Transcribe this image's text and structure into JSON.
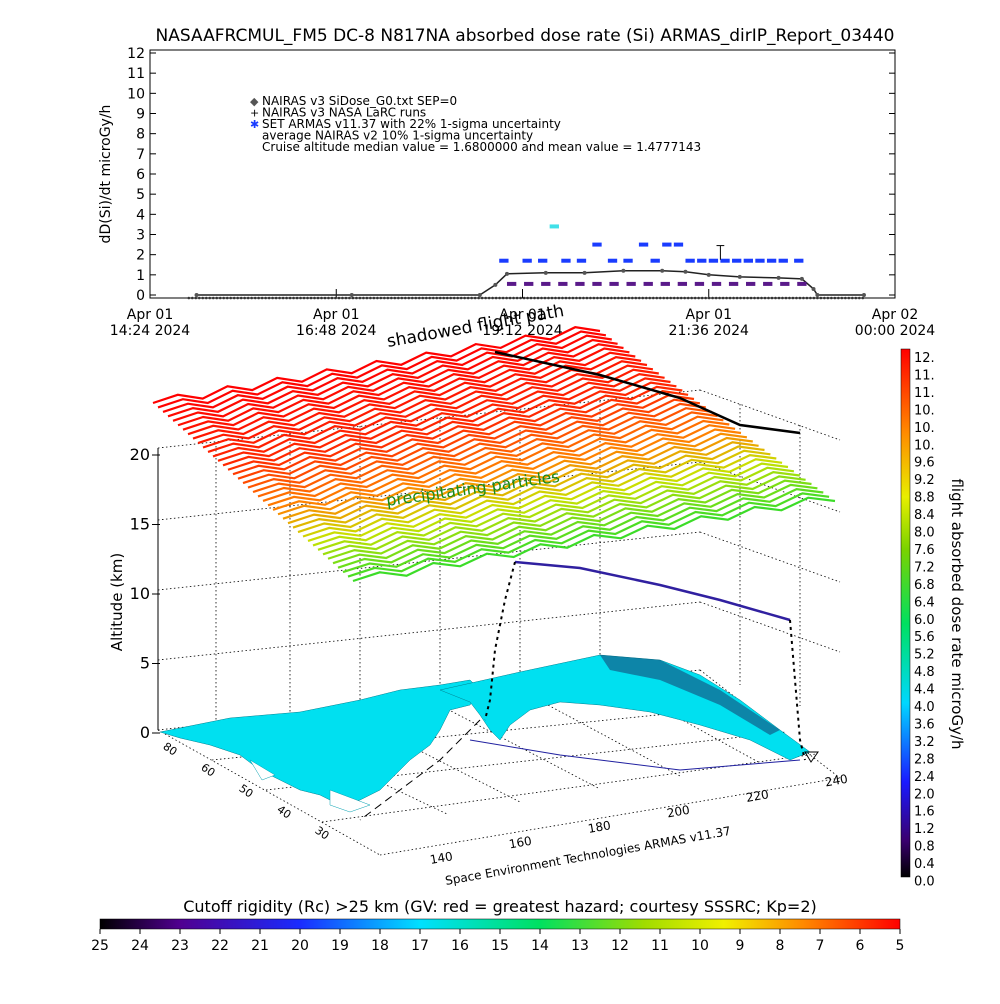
{
  "title": "NASAAFRCMUL_FM5 DC-8   N817NA absorbed dose rate (Si) ARMAS_dirIP_Report_03440",
  "chart_data": [
    {
      "type": "scatter",
      "ylabel": "dD(Si)/dt microGy/h",
      "ylim": [
        0,
        12
      ],
      "yticks": [
        "0",
        "1",
        "2",
        "3",
        "4",
        "5",
        "6",
        "7",
        "8",
        "9",
        "10",
        "11",
        "12"
      ],
      "xlim_hours": [
        14.4,
        24.0
      ],
      "xticks": [
        {
          "hour": 14.4,
          "l1": "Apr 01",
          "l2": "14:24 2024"
        },
        {
          "hour": 16.8,
          "l1": "Apr 01",
          "l2": "16:48 2024"
        },
        {
          "hour": 19.2,
          "l1": "Apr 01",
          "l2": "19:12 2024"
        },
        {
          "hour": 21.6,
          "l1": "Apr 01",
          "l2": "21:36 2024"
        },
        {
          "hour": 24.0,
          "l1": "Apr 02",
          "l2": "00:00 2024"
        }
      ],
      "legend": [
        {
          "symbol": "◆",
          "color": "#555555",
          "text": "NAIRAS v3 SiDose_G0.txt SEP=0"
        },
        {
          "symbol": "+",
          "color": "#000000",
          "text": "NAIRAS v3 NASA LaRC runs"
        },
        {
          "symbol": "✱",
          "color": "#1a3cff",
          "text": "SET ARMAS v11.37 with 22% 1-sigma uncertainty"
        },
        {
          "symbol": "",
          "color": "#000000",
          "text": "average NAIRAS v2 10% 1-sigma uncertainty"
        },
        {
          "symbol": "",
          "color": "#000000",
          "text": "Cruise altitude median value = 1.6800000 and mean value = 1.4777143"
        }
      ],
      "series": [
        {
          "name": "NAIRAS v3 SiDose_G0.txt SEP=0",
          "x_hours": [
            15.0,
            17.0,
            18.65,
            18.85,
            19.0,
            19.5,
            20.0,
            20.5,
            21.0,
            21.3,
            21.6,
            22.0,
            22.5,
            22.8,
            22.95,
            23.0,
            23.6
          ],
          "y": [
            0,
            0,
            0,
            0.5,
            1.05,
            1.1,
            1.1,
            1.2,
            1.2,
            1.15,
            1.0,
            0.9,
            0.85,
            0.8,
            0.3,
            0,
            0
          ]
        },
        {
          "name": "SET ARMAS v11.37 with 22% 1-sigma uncertainty",
          "x_hours": [
            18.9,
            19.2,
            19.4,
            19.55,
            19.7,
            19.9,
            20.1,
            20.3,
            20.5,
            20.7,
            20.85,
            21.0,
            21.15,
            21.3,
            21.45,
            21.6,
            21.75,
            21.9,
            22.05,
            22.2,
            22.35,
            22.5,
            22.7
          ],
          "y": [
            1.7,
            1.7,
            1.7,
            3.4,
            1.7,
            1.7,
            2.5,
            1.7,
            1.7,
            2.5,
            1.7,
            2.5,
            2.5,
            1.7,
            1.7,
            1.7,
            1.7,
            1.7,
            1.7,
            1.7,
            1.7,
            1.7,
            1.7
          ]
        }
      ]
    },
    {
      "type": "line",
      "zlabel": "Altitude (km)",
      "zticks": [
        "0",
        "5",
        "10",
        "15",
        "20"
      ],
      "lon_ticks": [
        "140",
        "160",
        "180",
        "200",
        "220",
        "240"
      ],
      "lat_ticks": [
        "80",
        "60",
        "50",
        "40",
        "30"
      ],
      "annotations": [
        "shadowed flight path",
        "precipitating particles"
      ],
      "footer": "Space Environment Technologies ARMAS v11.37",
      "colorbar_label": "flight absorbed dose rate microGy/h",
      "colorbar_ticks": [
        "12.",
        "11.",
        "11.",
        "10.",
        "10.",
        "10.",
        "9.6",
        "9.2",
        "8.8",
        "8.4",
        "8.0",
        "7.6",
        "7.2",
        "6.8",
        "6.4",
        "6.0",
        "5.6",
        "5.2",
        "4.8",
        "4.4",
        "4.0",
        "3.6",
        "3.2",
        "2.8",
        "2.4",
        "2.0",
        "1.6",
        "1.2",
        "0.8",
        "0.4",
        "0.0"
      ]
    },
    {
      "type": "heatmap",
      "label": "Cutoff rigidity (Rc) >25 km (GV: red = greatest hazard; courtesy SSSRC; Kp=2)",
      "ticks": [
        "25",
        "24",
        "23",
        "22",
        "21",
        "20",
        "19",
        "18",
        "17",
        "16",
        "15",
        "14",
        "13",
        "12",
        "11",
        "10",
        "9",
        "8",
        "7",
        "6",
        "5"
      ]
    }
  ]
}
